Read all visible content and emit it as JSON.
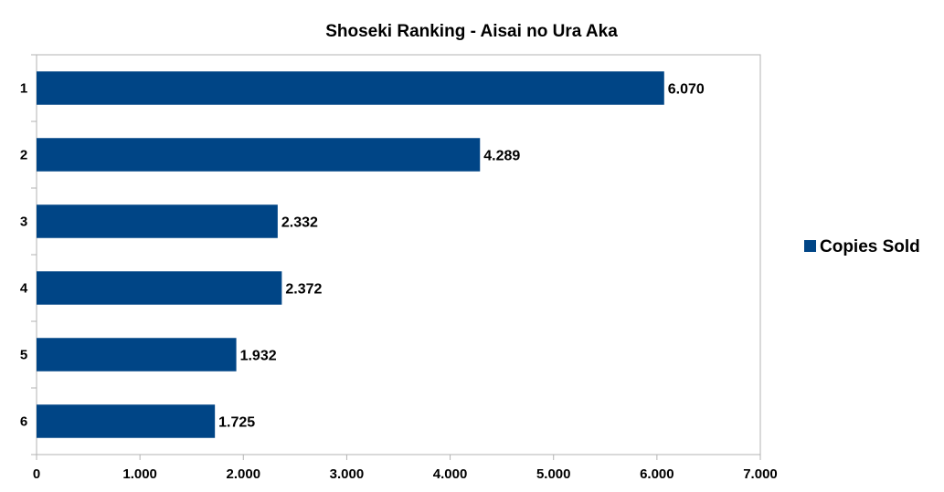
{
  "chart_data": {
    "type": "bar",
    "orientation": "horizontal",
    "title": "Shoseki Ranking - Aisai no Ura Aka",
    "xlabel": "",
    "ylabel": "",
    "categories": [
      "1",
      "2",
      "3",
      "4",
      "5",
      "6"
    ],
    "series": [
      {
        "name": "Copies Sold",
        "color": "#004586",
        "values": [
          6070,
          4289,
          2332,
          2372,
          1932,
          1725
        ],
        "data_labels": [
          "6.070",
          "4.289",
          "2.332",
          "2.372",
          "1.932",
          "1.725"
        ]
      }
    ],
    "xlim": [
      0,
      7000
    ],
    "x_ticks": [
      0,
      1000,
      2000,
      3000,
      4000,
      5000,
      6000,
      7000
    ],
    "x_tick_labels": [
      "0",
      "1.000",
      "2.000",
      "3.000",
      "4.000",
      "5.000",
      "6.000",
      "7.000"
    ],
    "grid": false,
    "legend_position": "right"
  }
}
